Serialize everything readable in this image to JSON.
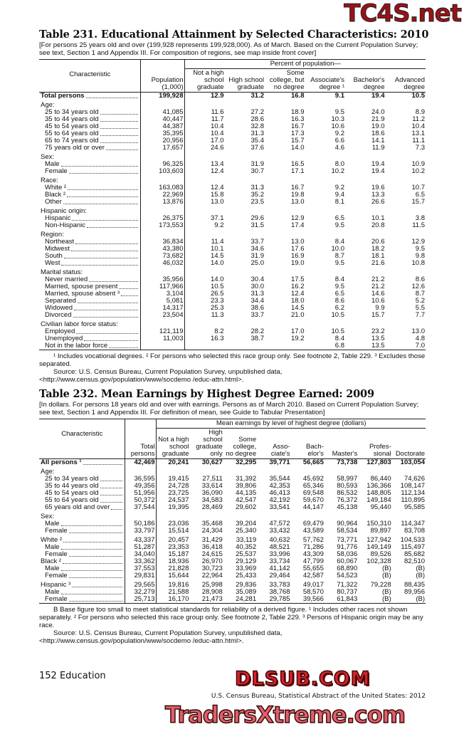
{
  "watermarks": {
    "top": "TC4S.net",
    "middle": "DLSUB.COM",
    "bottom": "TradersXtreme.com"
  },
  "t231": {
    "title": "Table 231. Educational Attainment by Selected Characteristics: 2010",
    "headnote": "[For persons 25 years old and over (199,928 represents 199,928,000). As of March. Based on the Current Population Survey; see text, Section 1 and Appendix III. For composition of regions, see map inside front cover]",
    "col_char": "Characteristic",
    "col_pop": "Population (1,000)",
    "spanner": "Percent of population—",
    "cols": [
      "Not a high school graduate",
      "High school graduate",
      "Some college, but no degree",
      "Associate's degree ¹",
      "Bachelor's degree",
      "Advanced degree"
    ],
    "total": {
      "label": "Total persons",
      "values": [
        "199,928",
        "12.9",
        "31.2",
        "16.8",
        "9.1",
        "19.4",
        "10.5"
      ]
    },
    "groups": [
      {
        "label": "Age:",
        "rows": [
          {
            "label": "25 to 34 years old",
            "values": [
              "41,085",
              "11.6",
              "27.2",
              "18.9",
              "9.5",
              "24.0",
              "8.9"
            ]
          },
          {
            "label": "35 to 44 years old",
            "values": [
              "40,447",
              "11.7",
              "28.6",
              "16.3",
              "10.3",
              "21.9",
              "11.2"
            ]
          },
          {
            "label": "45 to 54 years old",
            "values": [
              "44,387",
              "10.4",
              "32.8",
              "16.7",
              "10.6",
              "19.0",
              "10.4"
            ]
          },
          {
            "label": "55 to 64 years old",
            "values": [
              "35,395",
              "10.4",
              "31.3",
              "17.3",
              "9.2",
              "18.6",
              "13.1"
            ]
          },
          {
            "label": "65 to 74 years old",
            "values": [
              "20,956",
              "17.0",
              "35.4",
              "15.7",
              "6.6",
              "14.1",
              "11.1"
            ]
          },
          {
            "label": "75 years old or over",
            "values": [
              "17,657",
              "24.6",
              "37.6",
              "14.0",
              "4.6",
              "11.9",
              "7.3"
            ]
          }
        ]
      },
      {
        "label": "Sex:",
        "rows": [
          {
            "label": "Male",
            "values": [
              "96,325",
              "13.4",
              "31.9",
              "16.5",
              "8.0",
              "19.4",
              "10.9"
            ]
          },
          {
            "label": "Female",
            "values": [
              "103,603",
              "12.4",
              "30.7",
              "17.1",
              "10.2",
              "19.4",
              "10.2"
            ]
          }
        ]
      },
      {
        "label": "Race:",
        "rows": [
          {
            "label": "White ²",
            "values": [
              "163,083",
              "12.4",
              "31.3",
              "16.7",
              "9.2",
              "19.6",
              "10.7"
            ]
          },
          {
            "label": "Black ²",
            "values": [
              "22,969",
              "15.8",
              "35.2",
              "19.8",
              "9.4",
              "13.3",
              "6.5"
            ]
          },
          {
            "label": "Other",
            "values": [
              "13,876",
              "13.0",
              "23.5",
              "13.0",
              "8.1",
              "26.6",
              "15.7"
            ]
          }
        ]
      },
      {
        "label": "Hispanic origin:",
        "rows": [
          {
            "label": "Hispanic",
            "values": [
              "26,375",
              "37.1",
              "29.6",
              "12.9",
              "6.5",
              "10.1",
              "3.8"
            ]
          },
          {
            "label": "Non-Hispanic",
            "values": [
              "173,553",
              "9.2",
              "31.5",
              "17.4",
              "9.5",
              "20.8",
              "11.5"
            ]
          }
        ]
      },
      {
        "label": "Region:",
        "rows": [
          {
            "label": "Northeast",
            "values": [
              "36,834",
              "11.4",
              "33.7",
              "13.0",
              "8.4",
              "20.6",
              "12.9"
            ]
          },
          {
            "label": "Midwest",
            "values": [
              "43,380",
              "10.1",
              "34.6",
              "17.6",
              "10.0",
              "18.2",
              "9.5"
            ]
          },
          {
            "label": "South",
            "values": [
              "73,682",
              "14.5",
              "31.9",
              "16.9",
              "8.7",
              "18.1",
              "9.8"
            ]
          },
          {
            "label": "West",
            "values": [
              "46,032",
              "14.0",
              "25.0",
              "19.0",
              "9.5",
              "21.6",
              "10.8"
            ]
          }
        ]
      },
      {
        "label": "Marital status:",
        "rows": [
          {
            "label": "Never married",
            "values": [
              "35,956",
              "14.0",
              "30.4",
              "17.5",
              "8.4",
              "21.2",
              "8.6"
            ]
          },
          {
            "label": "Married, spouse present",
            "values": [
              "117,966",
              "10.5",
              "30.0",
              "16.2",
              "9.5",
              "21.2",
              "12.6"
            ]
          },
          {
            "label": "Married, spouse absent ³",
            "values": [
              "3,104",
              "26.5",
              "31.3",
              "12.4",
              "6.5",
              "14.6",
              "8.7"
            ]
          },
          {
            "label": "Separated",
            "values": [
              "5,081",
              "23.3",
              "34.4",
              "18.0",
              "8.6",
              "10.6",
              "5.2"
            ]
          },
          {
            "label": "Widowed",
            "values": [
              "14,317",
              "25.3",
              "38.6",
              "14.5",
              "6.2",
              "9.9",
              "5.5"
            ]
          },
          {
            "label": "Divorced",
            "values": [
              "23,504",
              "11.3",
              "33.7",
              "21.0",
              "10.5",
              "15.7",
              "7.7"
            ]
          }
        ]
      },
      {
        "label": "Civilian labor force status:",
        "rows": [
          {
            "label": "Employed",
            "values": [
              "121,119",
              "8.2",
              "28.2",
              "17.0",
              "10.5",
              "23.2",
              "13.0"
            ]
          },
          {
            "label": "Unemployed",
            "values": [
              "11,003",
              "16.3",
              "38.7",
              "19.2",
              "8.4",
              "13.5",
              "4.8"
            ]
          },
          {
            "label": "Not in the labor force",
            "values": [
              "",
              "",
              "",
              "",
              "6.8",
              "13.5",
              "7.0"
            ]
          }
        ]
      }
    ],
    "footnote": "¹ Includes vocational degrees. ² For persons who selected this race group only. See footnote 2, Table 229. ³ Excludes those separated.",
    "source": "Source: U.S. Census Bureau, Current Population Survey, unpublished data, <http://www.census.gov/population/www/socdemo /educ-attn.html>."
  },
  "t232": {
    "title": "Table 232. Mean Earnings by Highest Degree Earned: 2009",
    "headnote": "[In dollars. For persons 18 years old and over with earnings. Persons as of March 2010. Based on Current Population Survey; see text, Section 1 and  Appendix III. For definition of mean, see Guide to Tabular Presentation]",
    "col_char": "Characteristic",
    "col_total": "Total persons",
    "spanner": "Mean earnings by level of highest degree (dollars)",
    "cols": [
      "Not a high school graduate",
      "High school graduate only",
      "Some college, no degree",
      "Asso- ciate's",
      "Bach- elor's",
      "Master's",
      "Profes- sional",
      "Doctorate"
    ],
    "total": {
      "label": "All persons ¹",
      "values": [
        "42,469",
        "20,241",
        "30,627",
        "32,295",
        "39,771",
        "56,665",
        "73,738",
        "127,803",
        "103,054"
      ]
    },
    "groups": [
      {
        "label": "Age:",
        "rows": [
          {
            "label": "25 to 34 years old",
            "values": [
              "36,595",
              "19,415",
              "27,511",
              "31,392",
              "35,544",
              "45,692",
              "58,997",
              "86,440",
              "74,626"
            ]
          },
          {
            "label": "35 to 44 years old",
            "values": [
              "49,356",
              "24,728",
              "33,614",
              "39,806",
              "42,353",
              "65,346",
              "80,593",
              "136,366",
              "108,147"
            ]
          },
          {
            "label": "45 to 54 years old",
            "values": [
              "51,956",
              "23,725",
              "36,090",
              "44,135",
              "46,413",
              "69,548",
              "86,532",
              "148,805",
              "112,134"
            ]
          },
          {
            "label": "55 to 64 years old",
            "values": [
              "50,372",
              "24,537",
              "34,583",
              "42,547",
              "42,192",
              "59,670",
              "76,372",
              "149,184",
              "110,895"
            ]
          },
          {
            "label": "65 years old and over",
            "values": [
              "37,544",
              "19,395",
              "28,469",
              "29,602",
              "33,541",
              "44,147",
              "45,138",
              "95,440",
              "95,585"
            ]
          }
        ]
      },
      {
        "label": "Sex:",
        "rows": [
          {
            "label": "Male",
            "values": [
              "50,186",
              "23,036",
              "35,468",
              "39,204",
              "47,572",
              "69,479",
              "90,964",
              "150,310",
              "114,347"
            ]
          },
          {
            "label": "Female",
            "values": [
              "33,797",
              "15,514",
              "24,304",
              "25,340",
              "33,432",
              "43,589",
              "58,534",
              "89,897",
              "83,708"
            ]
          }
        ]
      },
      {
        "label": "",
        "rows": [
          {
            "label": "White ²",
            "top": true,
            "values": [
              "43,337",
              "20,457",
              "31,429",
              "33,119",
              "40,632",
              "57,762",
              "73,771",
              "127,942",
              "104,533"
            ]
          },
          {
            "label": "Male",
            "values": [
              "51,287",
              "23,353",
              "36,418",
              "40,352",
              "48,521",
              "71,286",
              "91,776",
              "149,149",
              "115,497"
            ]
          },
          {
            "label": "Female",
            "values": [
              "34,040",
              "15,187",
              "24,615",
              "25,537",
              "33,996",
              "43,309",
              "58,036",
              "89,526",
              "85,682"
            ]
          },
          {
            "label": "Black ²",
            "top": true,
            "values": [
              "33,362",
              "18,936",
              "26,970",
              "29,129",
              "33,734",
              "47,799",
              "60,067",
              "102,328",
              "82,510"
            ]
          },
          {
            "label": "Male",
            "values": [
              "37,553",
              "21,828",
              "30,723",
              "33,969",
              "41,142",
              "55,655",
              "68,890",
              "(B)",
              "(B)"
            ]
          },
          {
            "label": "Female",
            "values": [
              "29,831",
              "15,644",
              "22,964",
              "25,433",
              "29,464",
              "42,587",
              "54,523",
              "(B)",
              "(B)"
            ]
          }
        ]
      },
      {
        "label": "",
        "rows": [
          {
            "label": "Hispanic ³",
            "top": true,
            "values": [
              "29,565",
              "19,816",
              "25,998",
              "29,836",
              "33,783",
              "49,017",
              "71,322",
              "79,228",
              "88,435"
            ]
          },
          {
            "label": "Male",
            "values": [
              "32,279",
              "21,588",
              "28,908",
              "35,089",
              "38,768",
              "58,570",
              "80,737",
              "(B)",
              "89,956"
            ]
          },
          {
            "label": "Female",
            "values": [
              "25,713",
              "16,170",
              "21,473",
              "24,281",
              "29,785",
              "39,566",
              "61,843",
              "(B)",
              "(B)"
            ]
          }
        ]
      }
    ],
    "footnote": "B Base figure too small to meet statistical standards for reliability of a derived figure. ¹ Includes other races not shown separately. ² For persons who selected this race group only. See footnote 2, Table 229. ³ Persons of Hispanic origin may be any race.",
    "source": "Source: U.S. Census Bureau, Current Population Survey, unpublished data, <http://www.census.gov/population/www/socdemo /educ-attn.html>."
  },
  "page_footer": {
    "page": "152  Education",
    "publication": "U.S. Census Bureau, Statistical Abstract of the United States: 2012"
  }
}
